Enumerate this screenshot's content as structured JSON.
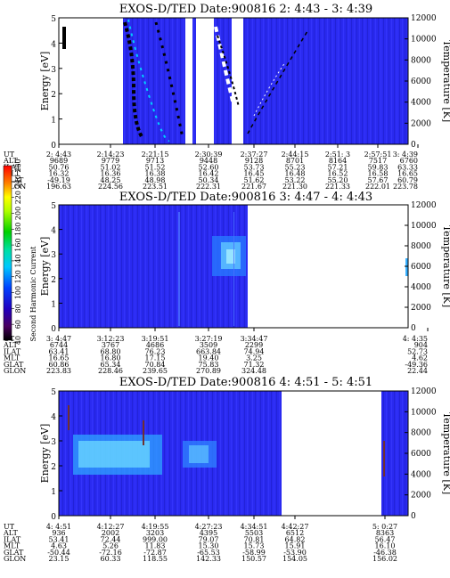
{
  "colorbar": {
    "label": "Second Harmonic Current",
    "ticks": [
      "40",
      "60",
      "80",
      "100",
      "120",
      "140",
      "160",
      "180",
      "200",
      "220",
      "240",
      "250"
    ]
  },
  "chart_data": [
    {
      "type": "heatmap",
      "title": "EXOS-D/TED   Date:900816  2: 4:43 - 3: 4:39",
      "ylabel": "Energy [eV]",
      "y2label": "Temperature [K]",
      "ylim": [
        0,
        5
      ],
      "y2lim": [
        0,
        12000
      ],
      "yticks": [
        "0",
        "1",
        "2",
        "3",
        "4",
        "5"
      ],
      "y2ticks": [
        "0",
        "2000",
        "4000",
        "6000",
        "8000",
        "10000",
        "12000"
      ],
      "ephemeris_labels": [
        "UT",
        "ALT",
        "ILAT",
        "MLT",
        "GLAT",
        "GLON"
      ],
      "ephemeris": [
        [
          "2: 4:43",
          "9689",
          "50.76",
          "16.32",
          "-49.19",
          "196.63"
        ],
        [
          "2:14:23",
          "9779",
          "51.02",
          "16.36",
          "48.25",
          "224.56"
        ],
        [
          "2:21:15",
          "9713",
          "51.52",
          "16.38",
          "48.98",
          "223.51"
        ],
        [
          "2:30:39",
          "9448",
          "52.60",
          "16.42",
          "50.34",
          "222.31"
        ],
        [
          "2:37:27",
          "9128",
          "53.73",
          "16.45",
          "51.62",
          "221.67"
        ],
        [
          "2:44:15",
          "8701",
          "55.23",
          "16.48",
          "53.22",
          "221.30"
        ],
        [
          "2:51: 3",
          "8164",
          "57.21",
          "16.52",
          "55.20",
          "221.33"
        ],
        [
          "2:57:51",
          "7517",
          "59.83",
          "16.58",
          "57.67",
          "222.01"
        ],
        [
          "3: 4:39",
          "6760",
          "63.33",
          "16.65",
          "60.79",
          "223.78"
        ]
      ]
    },
    {
      "type": "heatmap",
      "title": "EXOS-D/TED   Date:900816  3: 4:47 - 4: 4:43",
      "ylabel": "Energy [eV]",
      "y2label": "Temperature [K]",
      "ylim": [
        0,
        5
      ],
      "y2lim": [
        0,
        12000
      ],
      "yticks": [
        "0",
        "1",
        "2",
        "3",
        "4",
        "5"
      ],
      "y2ticks": [
        "0",
        "2000",
        "4000",
        "6000",
        "8000",
        "10000",
        "12000"
      ],
      "ephemeris_labels": [
        "UT",
        "ALT",
        "ILAT",
        "MLT",
        "GLAT",
        "GLON"
      ],
      "ephemeris": [
        [
          "3: 4:47",
          "6744",
          "63.41",
          "16.65",
          "60.86",
          "223.83"
        ],
        [
          "3:12:23",
          "3767",
          "68.80",
          "16.80",
          "65.34",
          "228.46"
        ],
        [
          "3:19:51",
          "4686",
          "76.23",
          "17.15",
          "70.84",
          "239.65"
        ],
        [
          "3:27:19",
          "3509",
          "663.84",
          "19.40",
          "75.83",
          "270.89"
        ],
        [
          "3:34:47",
          "2299",
          "74.94",
          "3.25",
          "71.32",
          "324.48"
        ],
        [
          "4: 4:35",
          "904",
          "52.73",
          "4.62",
          "-49.36",
          "22.44"
        ]
      ]
    },
    {
      "type": "heatmap",
      "title": "EXOS-D/TED   Date:900816  4: 4:51 - 5: 4:51",
      "ylabel": "Energy [eV]",
      "y2label": "Temperature [K]",
      "ylim": [
        0,
        5
      ],
      "y2lim": [
        0,
        12000
      ],
      "yticks": [
        "0",
        "1",
        "2",
        "3",
        "4",
        "5"
      ],
      "y2ticks": [
        "0",
        "2000",
        "4000",
        "6000",
        "8000",
        "10000",
        "12000"
      ],
      "ephemeris_labels": [
        "UT",
        "ALT",
        "ILAT",
        "MLT",
        "GLAT",
        "GLON"
      ],
      "ephemeris": [
        [
          "4: 4:51",
          "936",
          "53.41",
          "4.63",
          "-50.44",
          "23.15"
        ],
        [
          "4:12:27",
          "2002",
          "72.44",
          "5.26",
          "-72.16",
          "60.33"
        ],
        [
          "4:19:55",
          "3203",
          "999.00",
          "11.83",
          "-72.87",
          "118.55"
        ],
        [
          "4:27:23",
          "4395",
          "79.07",
          "15.30",
          "-65.53",
          "142.33"
        ],
        [
          "4:34:51",
          "5503",
          "70.81",
          "15.73",
          "-58.99",
          "150.57"
        ],
        [
          "4:42:27",
          "6512",
          "64.82",
          "15.91",
          "-53.90",
          "154.05"
        ],
        [
          "5: 0:27",
          "8363",
          "56.47",
          "16.10",
          "-46.38",
          "156.02"
        ]
      ]
    }
  ]
}
